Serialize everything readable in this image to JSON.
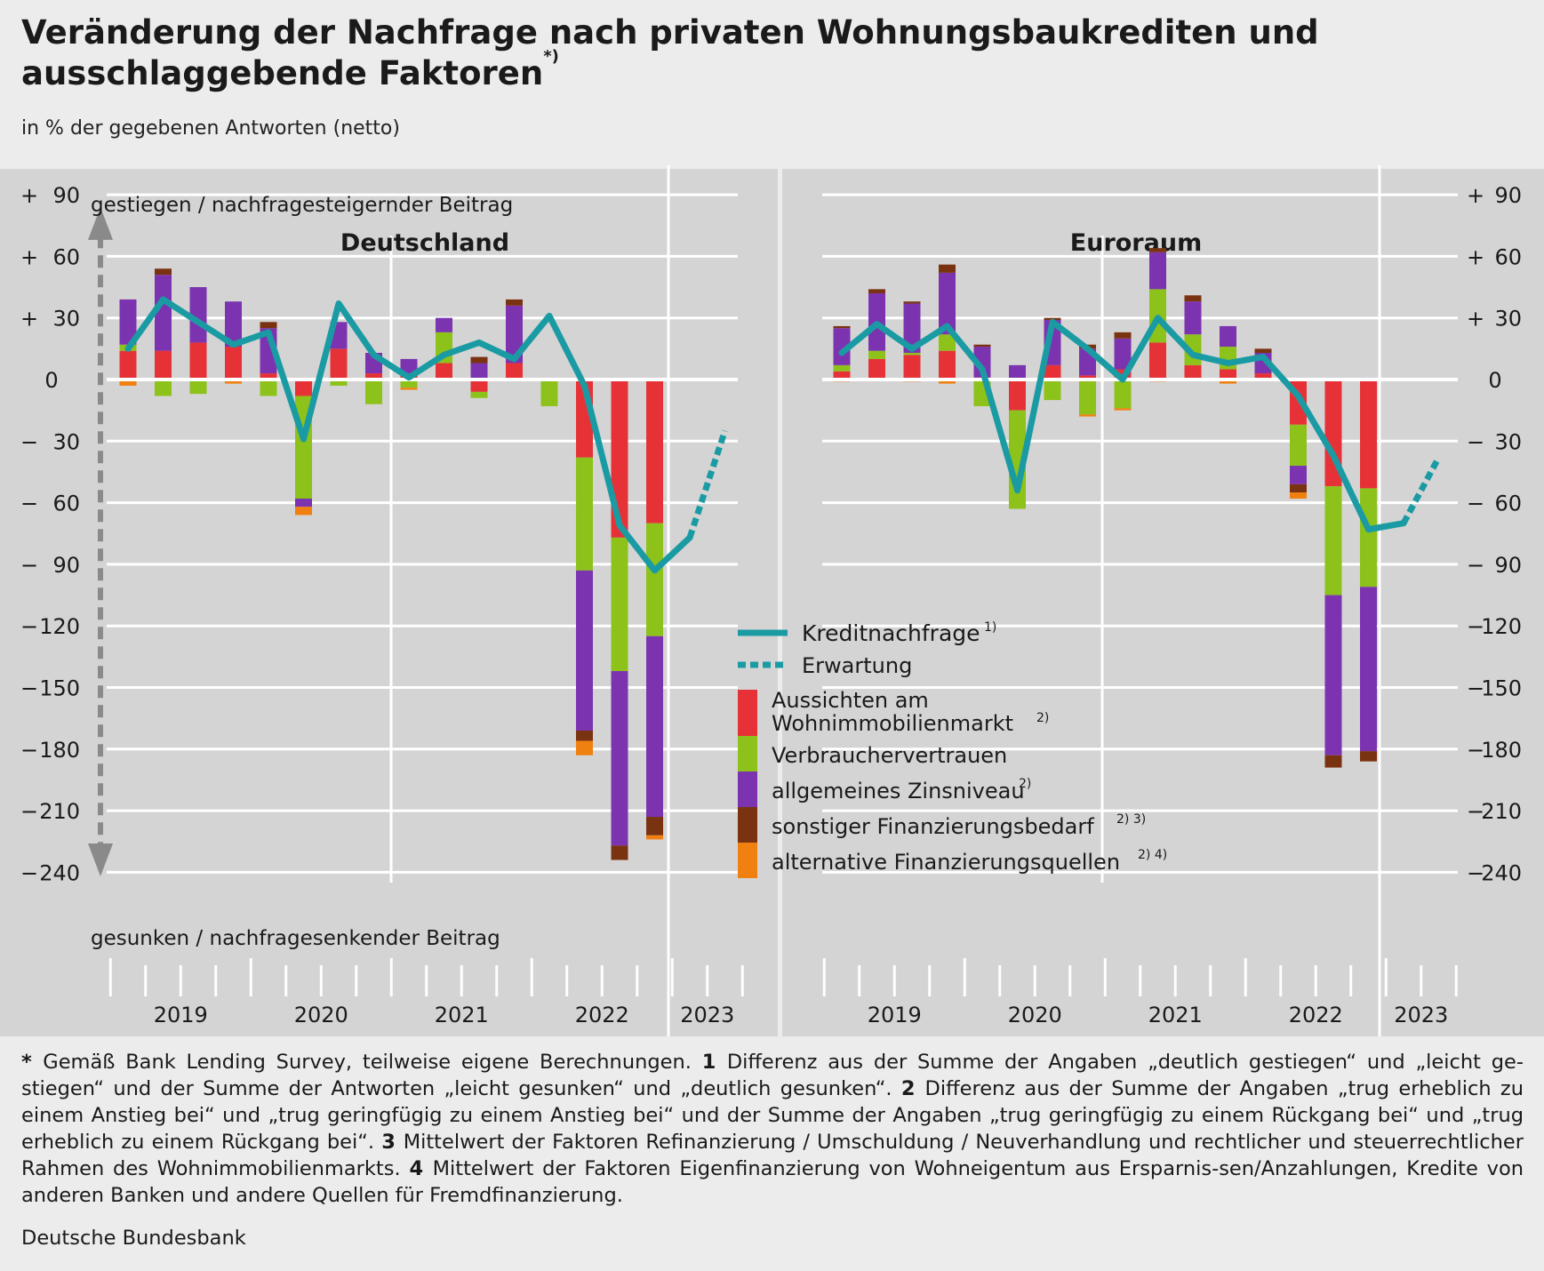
{
  "title": "Veränderung der Nachfrage nach privaten Wohnungsbaukrediten und ausschlaggebende Faktoren",
  "title_sup": "*)",
  "subtitle": "in % der gegebenen Antworten (netto)",
  "axis": {
    "top_label": "gestiegen / nachfragesteigernder Beitrag",
    "bottom_label": "gesunken / nachfragesenkender Beitrag",
    "ticks": [
      {
        "value": 90,
        "label": "+  90"
      },
      {
        "value": 60,
        "label": "+  60"
      },
      {
        "value": 30,
        "label": "+  30"
      },
      {
        "value": 0,
        "label": "0"
      },
      {
        "value": -30,
        "label": "−  30"
      },
      {
        "value": -60,
        "label": "−  60"
      },
      {
        "value": -90,
        "label": "−  90"
      },
      {
        "value": -120,
        "label": "− 120"
      },
      {
        "value": -150,
        "label": "− 150"
      },
      {
        "value": -180,
        "label": "− 180"
      },
      {
        "value": -210,
        "label": "− 210"
      },
      {
        "value": -240,
        "label": "− 240"
      }
    ],
    "years": [
      "2019",
      "2020",
      "2021",
      "2022",
      "2023"
    ]
  },
  "legend": {
    "line": "Kreditnachfrage",
    "line_sup": "1)",
    "dashed": "Erwartung",
    "items": [
      {
        "label": [
          "Aussichten am",
          "Wohnimmobilienmarkt"
        ],
        "sup": "2)",
        "color": "#e63237"
      },
      {
        "label": [
          "Verbrauchervertrauen"
        ],
        "sup": "",
        "color": "#8cc21a"
      },
      {
        "label": [
          "allgemeines Zinsniveau"
        ],
        "sup": "2)",
        "color": "#7b33b0"
      },
      {
        "label": [
          "sonstiger Finanzierungsbedarf"
        ],
        "sup": "2) 3)",
        "color": "#7a3310"
      },
      {
        "label": [
          "alternative Finanzierungsquellen"
        ],
        "sup": "2) 4)",
        "color": "#f08010"
      }
    ],
    "line_color": "#1a9ba3"
  },
  "chart_data": [
    {
      "type": "bar",
      "title": "Deutschland",
      "ylim": [
        -240,
        90
      ],
      "quarters": [
        "2019Q1",
        "2019Q2",
        "2019Q3",
        "2019Q4",
        "2020Q1",
        "2020Q2",
        "2020Q3",
        "2020Q4",
        "2021Q1",
        "2021Q2",
        "2021Q3",
        "2021Q4",
        "2022Q1",
        "2022Q2",
        "2022Q3",
        "2022Q4",
        "2023Q1",
        "2023Q2"
      ],
      "series": [
        {
          "name": "Aussichten am Wohnimmobilienmarkt",
          "values": [
            14,
            14,
            18,
            16,
            3,
            -8,
            15,
            3,
            3,
            8,
            -6,
            8,
            0,
            -38,
            -77,
            -70,
            null,
            null
          ]
        },
        {
          "name": "Verbrauchervertrauen",
          "values": [
            3,
            -8,
            -7,
            0,
            -8,
            -50,
            -3,
            -12,
            -4,
            15,
            -3,
            0,
            -13,
            -55,
            -65,
            -55,
            null,
            null
          ]
        },
        {
          "name": "allgemeines Zinsniveau",
          "values": [
            22,
            37,
            27,
            22,
            22,
            -4,
            13,
            10,
            7,
            7,
            8,
            28,
            0,
            -78,
            -85,
            -88,
            null,
            null
          ]
        },
        {
          "name": "sonstiger Finanzierungsbedarf",
          "values": [
            0,
            3,
            0,
            0,
            3,
            0,
            0,
            0,
            0,
            0,
            3,
            3,
            0,
            -5,
            -7,
            -9,
            null,
            null
          ]
        },
        {
          "name": "alternative Finanzierungsquellen",
          "values": [
            -3,
            0,
            0,
            -2,
            0,
            -4,
            0,
            0,
            -1,
            0,
            0,
            0,
            0,
            -7,
            0,
            -2,
            null,
            null
          ]
        },
        {
          "name": "Kreditnachfrage",
          "values": [
            15,
            39,
            28,
            17,
            23,
            -29,
            37,
            12,
            1,
            12,
            18,
            10,
            31,
            -3,
            -71,
            -93,
            -77,
            null
          ]
        },
        {
          "name": "Erwartung",
          "values": [
            null,
            null,
            null,
            null,
            null,
            null,
            null,
            null,
            null,
            null,
            null,
            null,
            null,
            null,
            null,
            null,
            -77,
            -25
          ]
        }
      ]
    },
    {
      "type": "bar",
      "title": "Euroraum",
      "ylim": [
        -240,
        90
      ],
      "quarters": [
        "2019Q1",
        "2019Q2",
        "2019Q3",
        "2019Q4",
        "2020Q1",
        "2020Q2",
        "2020Q3",
        "2020Q4",
        "2021Q1",
        "2021Q2",
        "2021Q3",
        "2021Q4",
        "2022Q1",
        "2022Q2",
        "2022Q3",
        "2022Q4",
        "2023Q1",
        "2023Q2"
      ],
      "series": [
        {
          "name": "Aussichten am Wohnimmobilienmarkt",
          "values": [
            4,
            10,
            12,
            14,
            1,
            -15,
            7,
            2,
            5,
            18,
            7,
            5,
            3,
            -22,
            -52,
            -53,
            null,
            null
          ]
        },
        {
          "name": "Verbrauchervertrauen",
          "values": [
            3,
            4,
            1,
            8,
            -13,
            -48,
            -10,
            -17,
            -14,
            26,
            15,
            11,
            0,
            -20,
            -53,
            -48,
            null,
            null
          ]
        },
        {
          "name": "allgemeines Zinsniveau",
          "values": [
            18,
            28,
            24,
            30,
            15,
            7,
            22,
            13,
            15,
            18,
            16,
            10,
            10,
            -9,
            -78,
            -80,
            null,
            null
          ]
        },
        {
          "name": "sonstiger Finanzierungsbedarf",
          "values": [
            1,
            2,
            1,
            4,
            1,
            0,
            1,
            2,
            3,
            2,
            3,
            0,
            2,
            -4,
            -6,
            -5,
            null,
            null
          ]
        },
        {
          "name": "alternative Finanzierungsquellen",
          "values": [
            -1,
            0,
            -1,
            -2,
            0,
            0,
            0,
            -1,
            -1,
            -1,
            0,
            -2,
            0,
            -3,
            0,
            0,
            null,
            null
          ]
        },
        {
          "name": "Kreditnachfrage",
          "values": [
            13,
            27,
            15,
            26,
            5,
            -54,
            28,
            15,
            0,
            30,
            12,
            8,
            11,
            -8,
            -37,
            -73,
            -70,
            null
          ]
        },
        {
          "name": "Erwartung",
          "values": [
            null,
            null,
            null,
            null,
            null,
            null,
            null,
            null,
            null,
            null,
            null,
            null,
            null,
            null,
            null,
            null,
            -70,
            -38
          ]
        }
      ]
    }
  ],
  "footnote_parts": [
    [
      "b",
      "* "
    ],
    [
      "t",
      "Gemäß Bank Lending Survey, teilweise eigene Berechnungen. "
    ],
    [
      "b",
      "1 "
    ],
    [
      "t",
      "Differenz aus der Summe der Angaben „deutlich gestiegen“ und „leicht ge-stiegen“ und der Summe der Antworten „leicht gesunken“ und „deutlich gesunken“. "
    ],
    [
      "b",
      "2 "
    ],
    [
      "t",
      "Differenz aus der Summe der Angaben „trug erheblich zu einem Anstieg bei“ und „trug geringfügig zu einem Anstieg bei“ und der Summe der Angaben „trug geringfügig zu einem Rückgang bei“ und „trug erheblich zu einem Rückgang bei“. "
    ],
    [
      "b",
      "3 "
    ],
    [
      "t",
      "Mittelwert der Faktoren Refinanzierung / Umschuldung / Neuverhandlung und rechtlicher und steuerrechtlicher Rahmen des Wohnimmobilienmarkts. "
    ],
    [
      "b",
      "4 "
    ],
    [
      "t",
      "Mittelwert der Faktoren Eigenfinanzierung von Wohneigentum aus Ersparnis-sen/Anzahlungen, Kredite von anderen Banken und andere Quellen für Fremdfinanzierung."
    ]
  ],
  "source": "Deutsche Bundesbank"
}
